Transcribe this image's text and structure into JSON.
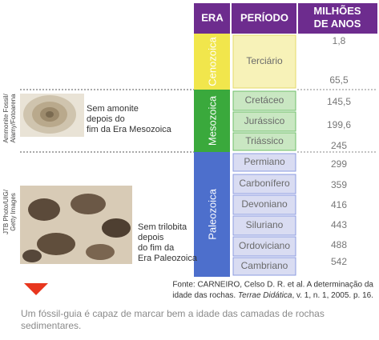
{
  "table": {
    "header": [
      "ERA",
      "PERÍODO",
      "MILHÕES DE ANOS"
    ],
    "eras": [
      {
        "name": "Cenozoica",
        "periods": [
          "Terciário"
        ]
      },
      {
        "name": "Mesozoica",
        "periods": [
          "Cretáceo",
          "Jurássico",
          "Triássico"
        ]
      },
      {
        "name": "Paleozoica",
        "periods": [
          "Permiano",
          "Carbonífero",
          "Devoniano",
          "Siluriano",
          "Ordoviciano",
          "Cambriano"
        ]
      }
    ],
    "ages": [
      "1,8",
      "65,5",
      "145,5",
      "199,6",
      "245",
      "299",
      "359",
      "416",
      "443",
      "488",
      "542"
    ]
  },
  "figures": [
    {
      "credit": [
        "Ammonite Fossil/",
        "Alamy/Fotoarena"
      ],
      "caption": [
        "Sem amonite",
        "depois do",
        "fim da Era Mesozoica"
      ]
    },
    {
      "credit": [
        "JTB Photo/UIG/",
        "Getty Images"
      ],
      "caption": [
        "Sem trilobita",
        "depois",
        "do fim da",
        "Era Paleozoica"
      ]
    }
  ],
  "source": [
    "Fonte: CARNEIRO, Celso D. R. et al. A determinação da",
    "idade das rochas. ",
    "Terrae Didática",
    ", v. 1, n. 1, 2005. p. 16."
  ],
  "caption": [
    "Um fóssil-guia é capaz de marcar bem a idade das camadas de rochas",
    "sedimentares."
  ]
}
